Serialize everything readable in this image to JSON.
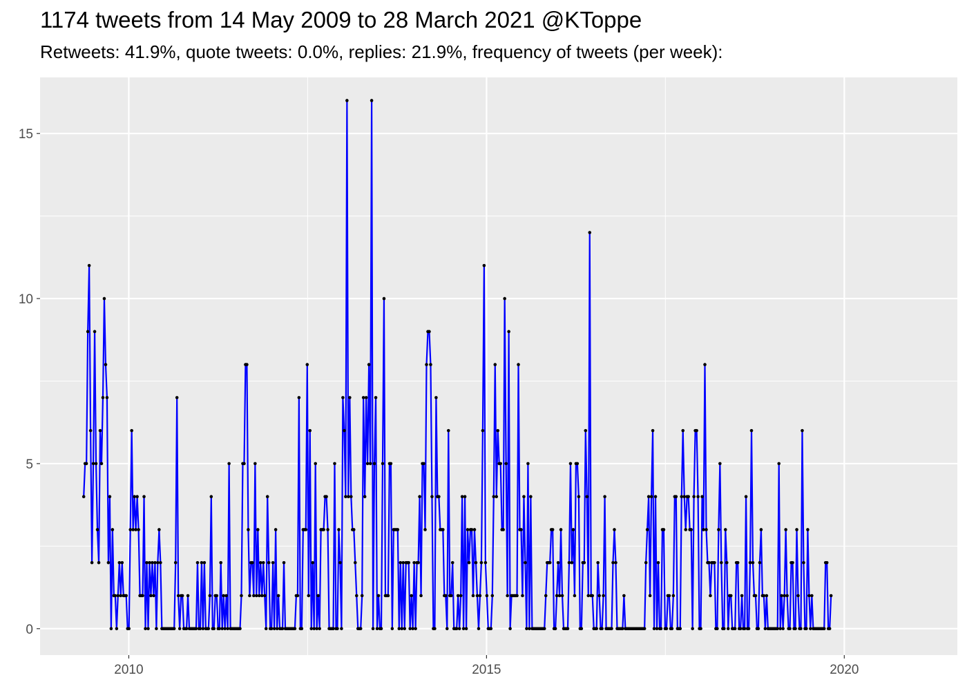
{
  "chart_data": {
    "type": "line",
    "title": "1174 tweets from 14 May 2009 to 28 March 2021 @KToppe",
    "subtitle": "Retweets: 41.9%, quote tweets: 0.0%, replies: 21.9%, frequency of tweets (per week):",
    "xlabel": "",
    "ylabel": "",
    "x_axis": "date (year)",
    "xlim": [
      2008.76,
      2021.58
    ],
    "ylim": [
      -0.8,
      16.7
    ],
    "x_ticks": [
      2010,
      2015,
      2020
    ],
    "x_tick_labels": [
      "2010",
      "2015",
      "2020"
    ],
    "y_ticks": [
      0,
      5,
      10,
      15
    ],
    "y_tick_labels": [
      "0",
      "5",
      "10",
      "15"
    ],
    "grid": true,
    "background": "#EBEBEB",
    "line_color": "#0000FF",
    "point_color": "#000000",
    "series": [
      {
        "x_start_year": 2009.37,
        "x_step_weeks": 1,
        "values": [
          4,
          5,
          5,
          9,
          11,
          6,
          2,
          5,
          9,
          5,
          3,
          2,
          6,
          5,
          7,
          10,
          8,
          7,
          2,
          4,
          0,
          3,
          1,
          1,
          0,
          1,
          2,
          1,
          2,
          1,
          1,
          1,
          0,
          0,
          3,
          6,
          3,
          4,
          3,
          4,
          3,
          1,
          1,
          1,
          4,
          0,
          2,
          0,
          2,
          1,
          2,
          1,
          2,
          0,
          2,
          3,
          2,
          0,
          0,
          0,
          0,
          0,
          0,
          0,
          0,
          0,
          0,
          2,
          7,
          1,
          0,
          1,
          1,
          0,
          0,
          0,
          1,
          0,
          0,
          0,
          0,
          0,
          0,
          2,
          0,
          0,
          2,
          0,
          2,
          0,
          0,
          0,
          1,
          4,
          0,
          0,
          1,
          1,
          0,
          0,
          2,
          0,
          1,
          0,
          1,
          0,
          5,
          0,
          0,
          0,
          0,
          0,
          0,
          0,
          0,
          1,
          5,
          5,
          8,
          8,
          3,
          1,
          2,
          2,
          1,
          5,
          1,
          3,
          1,
          2,
          1,
          2,
          1,
          0,
          4,
          2,
          0,
          0,
          2,
          0,
          3,
          0,
          1,
          0,
          0,
          0,
          2,
          0,
          0,
          0,
          0,
          0,
          0,
          0,
          0,
          1,
          1,
          7,
          0,
          0,
          3,
          3,
          3,
          8,
          1,
          6,
          0,
          2,
          0,
          5,
          0,
          1,
          0,
          3,
          3,
          3,
          4,
          4,
          3,
          0,
          0,
          0,
          0,
          5,
          0,
          0,
          3,
          2,
          0,
          7,
          6,
          4,
          16,
          4,
          7,
          4,
          3,
          3,
          2,
          1,
          0,
          0,
          0,
          1,
          7,
          4,
          7,
          5,
          8,
          5,
          16,
          0,
          5,
          7,
          0,
          1,
          0,
          0,
          5,
          10,
          1,
          1,
          1,
          5,
          5,
          0,
          3,
          3,
          3,
          3,
          0,
          2,
          0,
          2,
          0,
          2,
          2,
          2,
          0,
          1,
          0,
          2,
          0,
          2,
          2,
          4,
          1,
          5,
          5,
          3,
          8,
          9,
          9,
          8,
          4,
          0,
          0,
          7,
          4,
          4,
          3,
          3,
          3,
          1,
          1,
          0,
          6,
          1,
          1,
          2,
          0,
          0,
          0,
          1,
          0,
          1,
          4,
          0,
          4,
          0,
          3,
          2,
          3,
          3,
          1,
          3,
          2,
          1,
          0,
          1,
          2,
          6,
          11,
          2,
          1,
          0,
          0,
          0,
          1,
          4,
          8,
          4,
          6,
          5,
          5,
          3,
          3,
          10,
          5,
          1,
          9,
          0,
          1,
          1,
          1,
          1,
          1,
          8,
          3,
          3,
          1,
          4,
          2,
          0,
          5,
          0,
          4,
          0,
          0,
          0,
          0,
          0,
          0,
          0,
          0,
          0,
          0,
          1,
          2,
          2,
          2,
          3,
          3,
          0,
          0,
          1,
          2,
          1,
          3,
          1,
          0,
          0,
          0,
          0,
          2,
          5,
          2,
          3,
          1,
          5,
          5,
          4,
          0,
          0,
          2,
          2,
          6,
          4,
          1,
          12,
          1,
          1,
          0,
          0,
          0,
          2,
          1,
          0,
          0,
          1,
          4,
          0,
          0,
          0,
          0,
          0,
          2,
          3,
          2,
          0,
          0,
          0,
          0,
          0,
          1,
          0,
          0,
          0,
          0,
          0,
          0,
          0,
          0,
          0,
          0,
          0,
          0,
          0,
          0,
          0,
          2,
          3,
          4,
          1,
          4,
          6,
          0,
          4,
          0,
          2,
          0,
          0,
          3,
          3,
          0,
          0,
          1,
          1,
          0,
          0,
          1,
          4,
          4,
          0,
          0,
          0,
          4,
          6,
          4,
          3,
          4,
          4,
          3,
          3,
          0,
          4,
          6,
          6,
          4,
          0,
          0,
          4,
          3,
          8,
          3,
          2,
          2,
          1,
          2,
          2,
          2,
          0,
          0,
          3,
          5,
          2,
          0,
          0,
          3,
          2,
          0,
          1,
          1,
          0,
          0,
          0,
          2,
          2,
          0,
          0,
          1,
          0,
          0,
          4,
          0,
          0,
          2,
          6,
          2,
          1,
          1,
          0,
          0,
          2,
          3,
          1,
          1,
          0,
          1,
          0,
          0,
          0,
          0,
          0,
          0,
          0,
          0,
          5,
          0,
          1,
          0,
          1,
          3,
          1,
          0,
          0,
          2,
          2,
          0,
          0,
          3,
          1,
          0,
          0,
          6,
          2,
          0,
          0,
          3,
          1,
          0,
          1,
          0,
          0,
          0,
          0,
          0,
          0,
          0,
          0,
          0,
          2,
          2,
          0,
          0,
          1
        ]
      }
    ]
  }
}
